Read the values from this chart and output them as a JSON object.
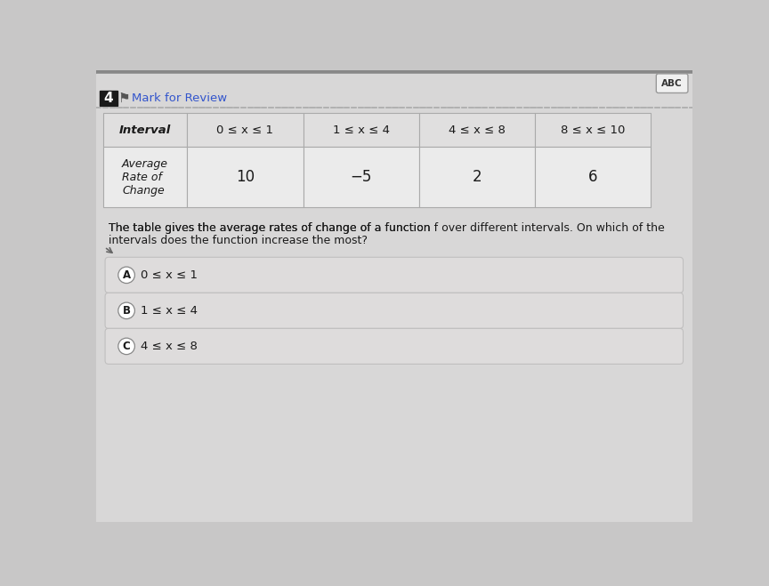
{
  "bg_color": "#c8c7c7",
  "page_bg": "#d8d7d7",
  "header_number": "4",
  "header_text": "Mark for Review",
  "abc_label": "ABC",
  "table_header_row": [
    "Interval",
    "0 ≤ x ≤ 1",
    "1 ≤ x ≤ 4",
    "4 ≤ x ≤ 8",
    "8 ≤ x ≤ 10"
  ],
  "table_data_label": [
    "Average\nRate of\nChange",
    "10",
    "−5",
    "2",
    "6"
  ],
  "question_line1": "The table gives the average rates of change of a function ",
  "question_f": "f",
  "question_line1b": " over different intervals. On which of the",
  "question_line2": "intervals does the function increase the most?",
  "choices": [
    {
      "letter": "A",
      "text": "0 ≤ x ≤ 1"
    },
    {
      "letter": "B",
      "text": "1 ≤ x ≤ 4"
    },
    {
      "letter": "C",
      "text": "4 ≤ x ≤ 8"
    }
  ],
  "table_bg_light": "#ebebeb",
  "table_bg_header": "#e0dfdf",
  "table_border": "#aaaaaa",
  "choice_bg": "#dedcdc",
  "choice_border": "#c0bfbf",
  "num_box_color": "#1a1a1a",
  "header_text_color": "#3355cc",
  "abc_bg": "#f0f0f0",
  "abc_border": "#999999",
  "top_strip_color": "#888888"
}
